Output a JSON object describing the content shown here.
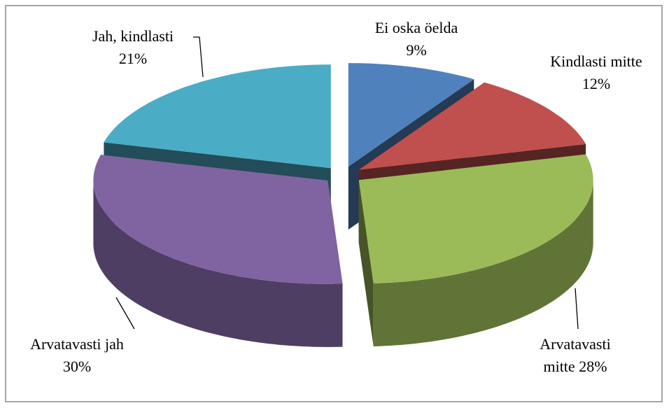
{
  "chart_data": {
    "type": "pie",
    "style": "3d-exploded",
    "categories": [
      "Ei oska öelda",
      "Kindlasti mitte",
      "Arvatavasti mitte",
      "Arvatavasti jah",
      "Jah, kindlasti"
    ],
    "values": [
      9,
      12,
      28,
      30,
      21
    ],
    "value_labels": [
      "9%",
      "12%",
      "28%",
      "30%",
      "21%"
    ],
    "colors": [
      "#4f81bd",
      "#c0504d",
      "#9bbb59",
      "#8064a2",
      "#4bacc6"
    ]
  }
}
